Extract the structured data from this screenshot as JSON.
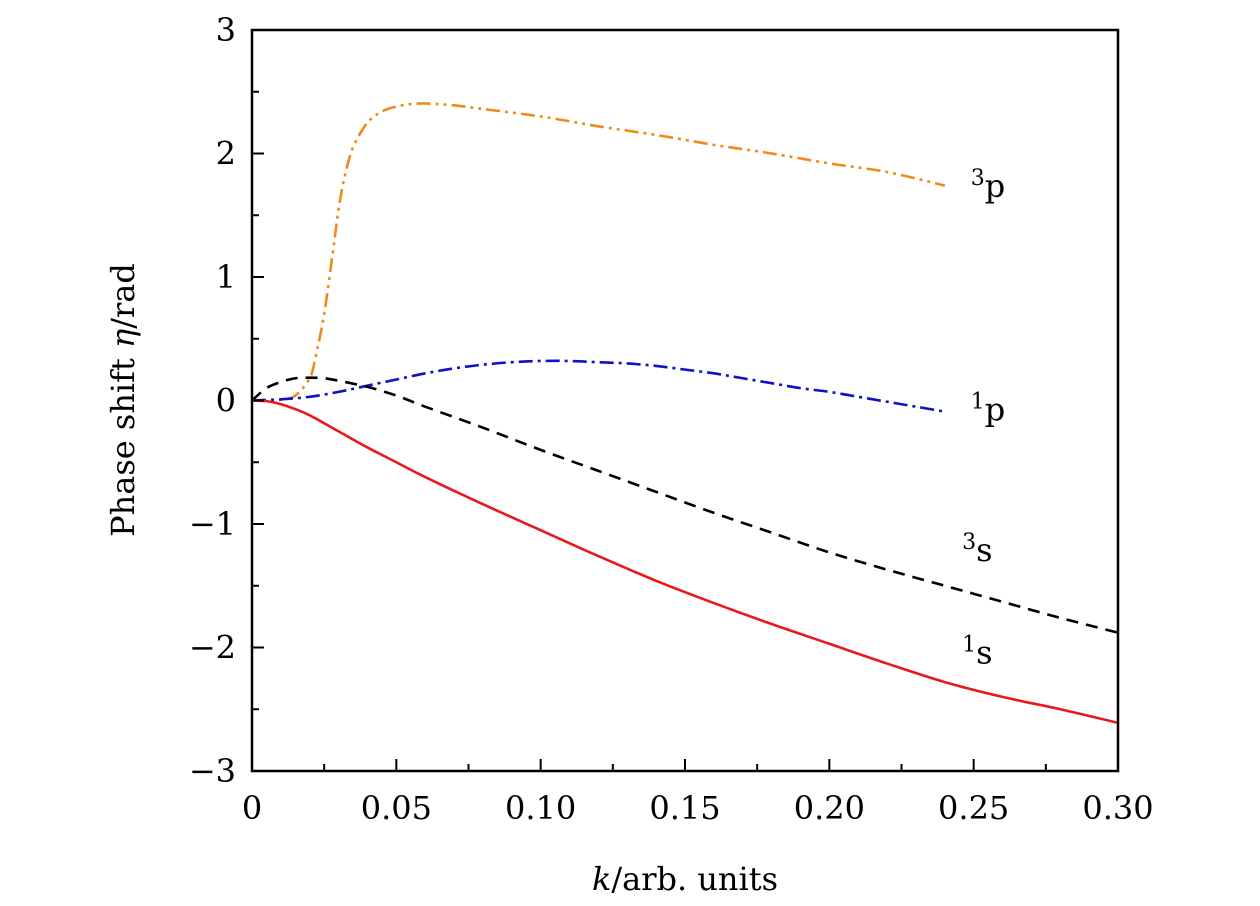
{
  "chart_data": {
    "type": "line",
    "xlabel_var": "k",
    "xlabel_rest": "/arb. units",
    "ylabel_main": "Phase shift ",
    "ylabel_var": "η",
    "ylabel_rest": "/rad",
    "xlim": [
      0,
      0.3
    ],
    "ylim": [
      -3,
      3
    ],
    "x_ticks": [
      {
        "value": 0,
        "label": "0"
      },
      {
        "value": 0.05,
        "label": "0.05"
      },
      {
        "value": 0.1,
        "label": "0.10"
      },
      {
        "value": 0.15,
        "label": "0.15"
      },
      {
        "value": 0.2,
        "label": "0.20"
      },
      {
        "value": 0.25,
        "label": "0.25"
      },
      {
        "value": 0.3,
        "label": "0.30"
      }
    ],
    "y_ticks": [
      {
        "value": 3,
        "label": "3"
      },
      {
        "value": 2,
        "label": "2"
      },
      {
        "value": 1,
        "label": "1"
      },
      {
        "value": 0,
        "label": "0"
      },
      {
        "value": -1,
        "label": "−1"
      },
      {
        "value": -2,
        "label": "−2"
      },
      {
        "value": -3,
        "label": "−3"
      }
    ],
    "series": [
      {
        "name": "3p",
        "sup": "3",
        "letter": "p",
        "color": "#f08a1c",
        "dash": "14,5,3,5,3,5",
        "label_at": [
          0.249,
          1.73
        ],
        "points": [
          [
            0,
            0
          ],
          [
            0.005,
            0
          ],
          [
            0.01,
            0.005
          ],
          [
            0.015,
            0.04
          ],
          [
            0.02,
            0.18
          ],
          [
            0.022,
            0.35
          ],
          [
            0.025,
            0.7
          ],
          [
            0.028,
            1.2
          ],
          [
            0.03,
            1.55
          ],
          [
            0.032,
            1.8
          ],
          [
            0.035,
            2.05
          ],
          [
            0.04,
            2.25
          ],
          [
            0.045,
            2.34
          ],
          [
            0.05,
            2.38
          ],
          [
            0.055,
            2.4
          ],
          [
            0.06,
            2.405
          ],
          [
            0.07,
            2.39
          ],
          [
            0.08,
            2.36
          ],
          [
            0.1,
            2.3
          ],
          [
            0.12,
            2.22
          ],
          [
            0.14,
            2.15
          ],
          [
            0.16,
            2.07
          ],
          [
            0.18,
            2.0
          ],
          [
            0.2,
            1.92
          ],
          [
            0.22,
            1.85
          ],
          [
            0.24,
            1.74
          ]
        ]
      },
      {
        "name": "1p",
        "sup": "1",
        "letter": "p",
        "color": "#1010c8",
        "dash": "14,5,3,5",
        "label_at": [
          0.249,
          -0.08
        ],
        "points": [
          [
            0,
            0
          ],
          [
            0.01,
            0.01
          ],
          [
            0.02,
            0.03
          ],
          [
            0.03,
            0.07
          ],
          [
            0.04,
            0.12
          ],
          [
            0.05,
            0.17
          ],
          [
            0.06,
            0.22
          ],
          [
            0.07,
            0.26
          ],
          [
            0.08,
            0.29
          ],
          [
            0.09,
            0.31
          ],
          [
            0.1,
            0.32
          ],
          [
            0.11,
            0.32
          ],
          [
            0.12,
            0.31
          ],
          [
            0.13,
            0.3
          ],
          [
            0.14,
            0.28
          ],
          [
            0.15,
            0.25
          ],
          [
            0.16,
            0.22
          ],
          [
            0.17,
            0.18
          ],
          [
            0.18,
            0.14
          ],
          [
            0.19,
            0.1
          ],
          [
            0.2,
            0.07
          ],
          [
            0.21,
            0.03
          ],
          [
            0.22,
            -0.01
          ],
          [
            0.23,
            -0.05
          ],
          [
            0.24,
            -0.09
          ]
        ]
      },
      {
        "name": "3s",
        "sup": "3",
        "letter": "s",
        "color": "#000000",
        "dash": "12,8",
        "label_at": [
          0.246,
          -1.22
        ],
        "points": [
          [
            0,
            0
          ],
          [
            0.005,
            0.1
          ],
          [
            0.01,
            0.15
          ],
          [
            0.015,
            0.18
          ],
          [
            0.02,
            0.185
          ],
          [
            0.025,
            0.18
          ],
          [
            0.03,
            0.16
          ],
          [
            0.04,
            0.11
          ],
          [
            0.05,
            0.04
          ],
          [
            0.06,
            -0.05
          ],
          [
            0.08,
            -0.22
          ],
          [
            0.1,
            -0.4
          ],
          [
            0.12,
            -0.57
          ],
          [
            0.14,
            -0.74
          ],
          [
            0.16,
            -0.91
          ],
          [
            0.18,
            -1.07
          ],
          [
            0.2,
            -1.23
          ],
          [
            0.22,
            -1.37
          ],
          [
            0.24,
            -1.5
          ],
          [
            0.26,
            -1.63
          ],
          [
            0.28,
            -1.76
          ],
          [
            0.3,
            -1.88
          ]
        ]
      },
      {
        "name": "1s",
        "sup": "1",
        "letter": "s",
        "color": "#e8191c",
        "dash": "",
        "label_at": [
          0.246,
          -2.05
        ],
        "points": [
          [
            0,
            0
          ],
          [
            0.005,
            -0.005
          ],
          [
            0.01,
            -0.03
          ],
          [
            0.015,
            -0.07
          ],
          [
            0.02,
            -0.12
          ],
          [
            0.03,
            -0.25
          ],
          [
            0.04,
            -0.38
          ],
          [
            0.05,
            -0.5
          ],
          [
            0.06,
            -0.62
          ],
          [
            0.08,
            -0.84
          ],
          [
            0.1,
            -1.05
          ],
          [
            0.12,
            -1.26
          ],
          [
            0.14,
            -1.46
          ],
          [
            0.16,
            -1.64
          ],
          [
            0.18,
            -1.81
          ],
          [
            0.2,
            -1.97
          ],
          [
            0.22,
            -2.13
          ],
          [
            0.24,
            -2.28
          ],
          [
            0.26,
            -2.4
          ],
          [
            0.28,
            -2.5
          ],
          [
            0.3,
            -2.61
          ]
        ]
      }
    ]
  }
}
